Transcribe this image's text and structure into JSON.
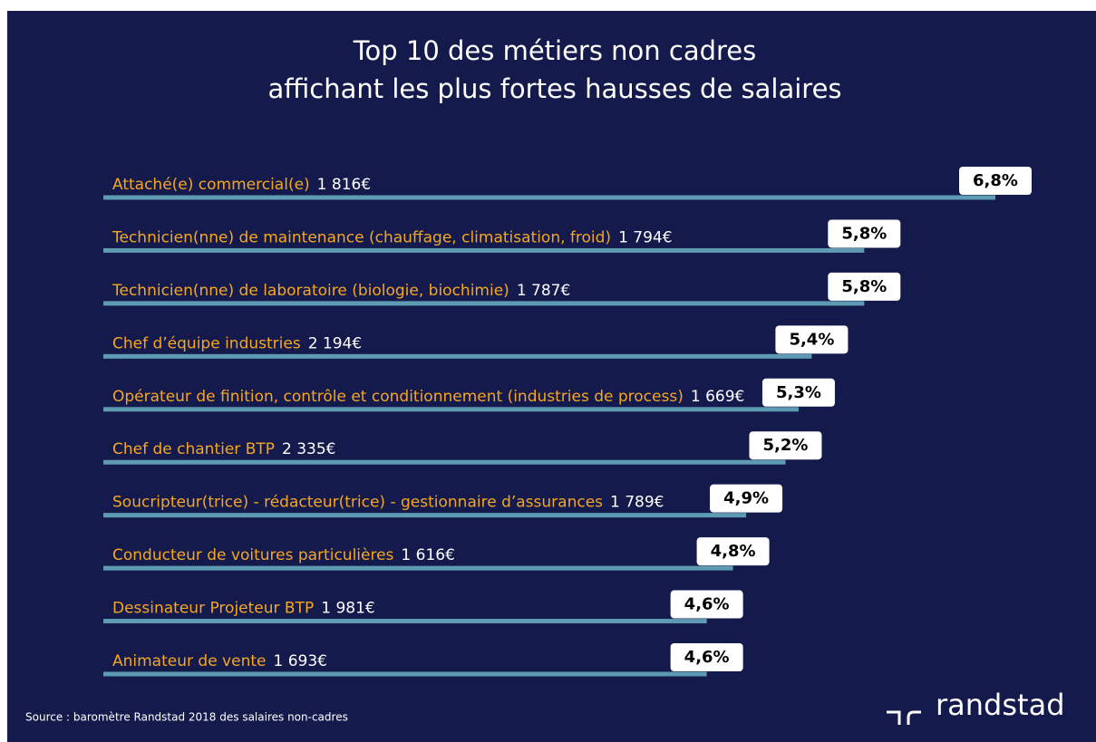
{
  "chart_data": {
    "type": "bar",
    "orientation": "horizontal",
    "title": [
      "Top 10 des métiers non cadres",
      "affichant les plus fortes hausses de salaires"
    ],
    "categories": [
      "Attaché(e) commercial(e)",
      "Technicien(nne) de maintenance (chauffage, climatisation,  froid)",
      "Technicien(nne) de laboratoire (biologie, biochimie)",
      "Chef d’équipe industries",
      "Opérateur de finition, contrôle et conditionnement  (industries de process)",
      "Chef de chantier BTP",
      "Soucripteur(trice) - rédacteur(trice) - gestionnaire d’assurances",
      "Conducteur de voitures particulières",
      "Dessinateur Projeteur BTP",
      "Animateur de vente"
    ],
    "salaries": [
      "1 816€",
      "1 794€",
      "1 787€",
      "2 194€",
      "1 669€",
      "2 335€",
      "1 789€",
      "1 616€",
      "1 981€",
      "1 693€"
    ],
    "values": [
      6.8,
      5.8,
      5.8,
      5.4,
      5.3,
      5.2,
      4.9,
      4.8,
      4.6,
      4.6
    ],
    "value_labels": [
      "6,8%",
      "5,8%",
      "5,8%",
      "5,4%",
      "5,3%",
      "5,2%",
      "4,9%",
      "4,8%",
      "4,6%",
      "4,6%"
    ],
    "color": "#5e9bb3",
    "source": "Source : baromètre Randstad 2018 des salaires  non-cadres",
    "brand": "randstad"
  }
}
